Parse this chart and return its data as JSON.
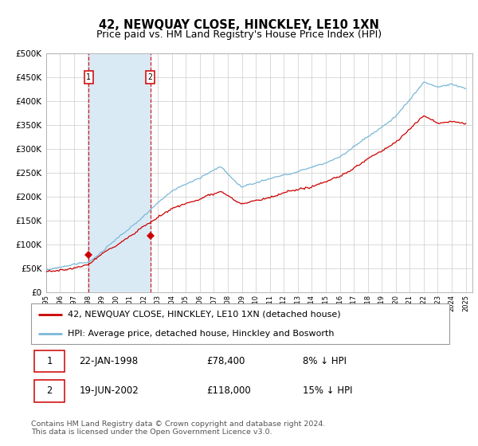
{
  "title": "42, NEWQUAY CLOSE, HINCKLEY, LE10 1XN",
  "subtitle": "Price paid vs. HM Land Registry's House Price Index (HPI)",
  "ylim": [
    0,
    500000
  ],
  "yticks": [
    0,
    50000,
    100000,
    150000,
    200000,
    250000,
    300000,
    350000,
    400000,
    450000,
    500000
  ],
  "ytick_labels": [
    "£0",
    "£50K",
    "£100K",
    "£150K",
    "£200K",
    "£250K",
    "£300K",
    "£350K",
    "£400K",
    "£450K",
    "£500K"
  ],
  "hpi_color": "#7ab8d8",
  "price_color": "#cc0000",
  "vline_color": "#cc0000",
  "shade_color": "#daeaf5",
  "transaction1_date": 1998.055,
  "transaction1_price": 78400,
  "transaction2_date": 2002.46,
  "transaction2_price": 118000,
  "legend_label1": "42, NEWQUAY CLOSE, HINCKLEY, LE10 1XN (detached house)",
  "legend_label2": "HPI: Average price, detached house, Hinckley and Bosworth",
  "table_row1_date": "22-JAN-1998",
  "table_row1_price": "£78,400",
  "table_row1_hpi": "8% ↓ HPI",
  "table_row2_date": "19-JUN-2002",
  "table_row2_price": "£118,000",
  "table_row2_hpi": "15% ↓ HPI",
  "footer_line1": "Contains HM Land Registry data © Crown copyright and database right 2024.",
  "footer_line2": "This data is licensed under the Open Government Licence v3.0.",
  "title_fontsize": 10.5,
  "subtitle_fontsize": 9,
  "axis_fontsize": 7.5,
  "legend_fontsize": 8,
  "table_fontsize": 8.5,
  "footer_fontsize": 6.8,
  "xlim_start": 1995,
  "xlim_end": 2025.5
}
